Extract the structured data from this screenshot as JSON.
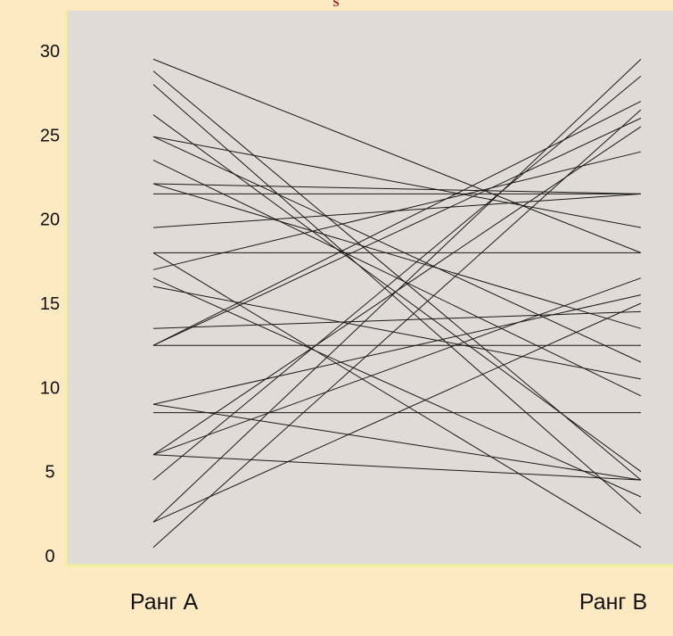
{
  "chart_data": {
    "type": "line",
    "title": "",
    "xlabel": "",
    "ylabel": "",
    "categories": [
      "Ранг А",
      "Ранг В"
    ],
    "y_ticks": [
      "0",
      "5",
      "10",
      "15",
      "20",
      "25",
      "30"
    ],
    "ylim": [
      0,
      30
    ],
    "grid": false,
    "legend": "none",
    "lines": [
      [
        29.5,
        18
      ],
      [
        28.8,
        4.5
      ],
      [
        28,
        2.5
      ],
      [
        26.2,
        5
      ],
      [
        24.9,
        19.5
      ],
      [
        24.9,
        11.5
      ],
      [
        23.5,
        9.5
      ],
      [
        22.1,
        13.5
      ],
      [
        22.1,
        21.5
      ],
      [
        21.5,
        21.5
      ],
      [
        19.5,
        21.5
      ],
      [
        18,
        18
      ],
      [
        18,
        0.5
      ],
      [
        17,
        24
      ],
      [
        16.5,
        3.5
      ],
      [
        16,
        10.5
      ],
      [
        13.5,
        14.5
      ],
      [
        12.5,
        12.5
      ],
      [
        12.5,
        26
      ],
      [
        12.5,
        27
      ],
      [
        9,
        15.5
      ],
      [
        9,
        4.5
      ],
      [
        8.5,
        8.5
      ],
      [
        6,
        16.5
      ],
      [
        6,
        25.5
      ],
      [
        6,
        4.5
      ],
      [
        4.5,
        28.5
      ],
      [
        2,
        29.5
      ],
      [
        2,
        15
      ],
      [
        0.5,
        26.5
      ]
    ]
  },
  "colors": {
    "page_background": "#fde9c2",
    "plot_background": "#e0dbd6",
    "axis": "#f2ef9a",
    "line": "#1a1a1a",
    "text": "#111111",
    "title_mark": "#9b1c1c"
  },
  "title_mark": "S"
}
